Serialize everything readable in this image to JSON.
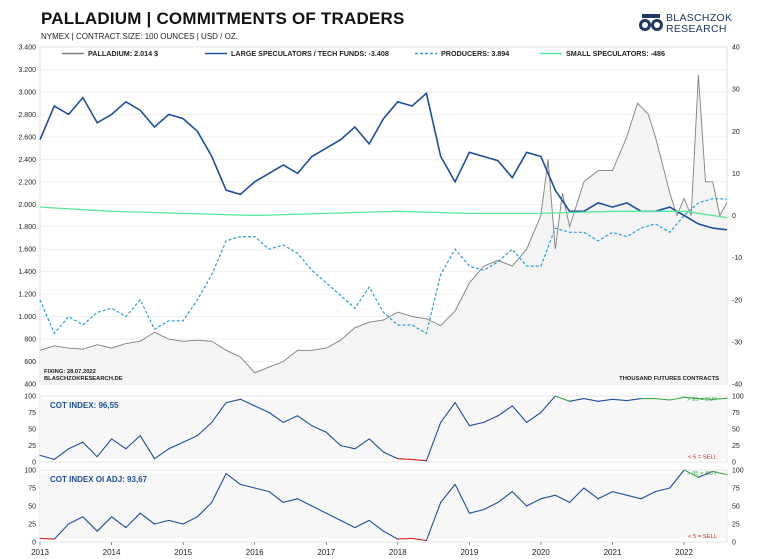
{
  "header": {
    "title": "PALLADIUM | COMMITMENTS OF TRADERS",
    "subtitle": "NYMEX | CONTRACT SIZE: 100 OUNCES | USD / OZ.",
    "logo_text_1": "BLASCHZOK",
    "logo_text_2": "RESEARCH"
  },
  "colors": {
    "price": "#7f7f7f",
    "large_spec": "#1f4e9e",
    "producers": "#2a9fd8",
    "small_spec": "#57e89a",
    "buy": "#3aa845",
    "sell": "#e02020",
    "grid": "#e6e6e6"
  },
  "chart_data": [
    {
      "type": "line",
      "panel": "main",
      "legend": [
        {
          "key": "price",
          "label": "PALLADIUM: 2.014 $"
        },
        {
          "key": "large_spec",
          "label": "LARGE SPECULATORS / TECH FUNDS: -3.408"
        },
        {
          "key": "producers",
          "label": "PRODUCERS: 3.894"
        },
        {
          "key": "small_spec",
          "label": "SMALL SPECULATORS: -486"
        }
      ],
      "left_axis": {
        "ticks": [
          "3.400",
          "3.200",
          "3.000",
          "2.800",
          "2.600",
          "2.400",
          "2.200",
          "2.000",
          "1.800",
          "1.600",
          "1.400",
          "1.200",
          "1.000",
          "800",
          "600",
          "400"
        ],
        "ylim": [
          400,
          3400
        ]
      },
      "right_axis": {
        "ticks": [
          "40",
          "30",
          "20",
          "10",
          "0",
          "-10",
          "-20",
          "-30",
          "-40"
        ],
        "ylim": [
          -40,
          40
        ]
      },
      "x_ticks": [
        "2013",
        "2014",
        "2015",
        "2016",
        "2017",
        "2018",
        "2019",
        "2020",
        "2021",
        "2022"
      ],
      "x_range": [
        2013.0,
        2022.6
      ],
      "fixing_note": "FIXING: 28.07.2022",
      "source_note": "BLASCHZOKRESEARCH.DE",
      "unit_note": "THOUSAND FUTURES CONTRACTS",
      "series": [
        {
          "key": "price",
          "axis": "left",
          "x": [
            2013.0,
            2013.2,
            2013.4,
            2013.6,
            2013.8,
            2014.0,
            2014.2,
            2014.4,
            2014.6,
            2014.8,
            2015.0,
            2015.2,
            2015.4,
            2015.6,
            2015.8,
            2016.0,
            2016.2,
            2016.4,
            2016.6,
            2016.8,
            2017.0,
            2017.2,
            2017.4,
            2017.6,
            2017.8,
            2018.0,
            2018.2,
            2018.4,
            2018.6,
            2018.8,
            2019.0,
            2019.2,
            2019.4,
            2019.6,
            2019.8,
            2020.0,
            2020.1,
            2020.2,
            2020.3,
            2020.4,
            2020.6,
            2020.8,
            2021.0,
            2021.2,
            2021.35,
            2021.5,
            2021.6,
            2021.8,
            2021.9,
            2022.0,
            2022.1,
            2022.2,
            2022.3,
            2022.4,
            2022.5,
            2022.6
          ],
          "y": [
            700,
            740,
            720,
            710,
            750,
            720,
            760,
            780,
            860,
            800,
            780,
            790,
            780,
            700,
            640,
            500,
            550,
            600,
            700,
            700,
            720,
            790,
            900,
            950,
            970,
            1040,
            1000,
            980,
            920,
            1050,
            1300,
            1450,
            1500,
            1450,
            1600,
            1900,
            2400,
            1600,
            2100,
            1800,
            2200,
            2300,
            2300,
            2600,
            2900,
            2800,
            2600,
            2100,
            1900,
            2050,
            1900,
            3150,
            2200,
            2200,
            1900,
            2014
          ]
        },
        {
          "key": "large_spec",
          "axis": "right",
          "x": [
            2013.0,
            2013.2,
            2013.4,
            2013.6,
            2013.8,
            2014.0,
            2014.2,
            2014.4,
            2014.6,
            2014.8,
            2015.0,
            2015.2,
            2015.4,
            2015.6,
            2015.8,
            2016.0,
            2016.2,
            2016.4,
            2016.6,
            2016.8,
            2017.0,
            2017.2,
            2017.4,
            2017.6,
            2017.8,
            2018.0,
            2018.2,
            2018.4,
            2018.6,
            2018.8,
            2019.0,
            2019.2,
            2019.4,
            2019.6,
            2019.8,
            2020.0,
            2020.2,
            2020.4,
            2020.6,
            2020.8,
            2021.0,
            2021.2,
            2021.4,
            2021.6,
            2021.8,
            2022.0,
            2022.2,
            2022.4,
            2022.6
          ],
          "y": [
            18,
            26,
            24,
            28,
            22,
            24,
            27,
            25,
            21,
            24,
            23,
            20,
            14,
            6,
            5,
            8,
            10,
            12,
            10,
            14,
            16,
            18,
            21,
            17,
            23,
            27,
            26,
            29,
            14,
            8,
            15,
            14,
            13,
            9,
            15,
            14,
            6,
            1,
            1,
            3,
            2,
            3,
            1,
            1,
            2,
            0,
            -2,
            -3,
            -3.4
          ]
        },
        {
          "key": "producers",
          "axis": "right",
          "x": [
            2013.0,
            2013.2,
            2013.4,
            2013.6,
            2013.8,
            2014.0,
            2014.2,
            2014.4,
            2014.6,
            2014.8,
            2015.0,
            2015.2,
            2015.4,
            2015.6,
            2015.8,
            2016.0,
            2016.2,
            2016.4,
            2016.6,
            2016.8,
            2017.0,
            2017.2,
            2017.4,
            2017.6,
            2017.8,
            2018.0,
            2018.2,
            2018.4,
            2018.6,
            2018.8,
            2019.0,
            2019.2,
            2019.4,
            2019.6,
            2019.8,
            2020.0,
            2020.2,
            2020.4,
            2020.6,
            2020.8,
            2021.0,
            2021.2,
            2021.4,
            2021.6,
            2021.8,
            2022.0,
            2022.2,
            2022.4,
            2022.6
          ],
          "y": [
            -20,
            -28,
            -24,
            -26,
            -23,
            -22,
            -24,
            -20,
            -27,
            -25,
            -25,
            -20,
            -14,
            -6,
            -5,
            -5,
            -8,
            -7,
            -9,
            -13,
            -16,
            -19,
            -22,
            -17,
            -23,
            -26,
            -26,
            -28,
            -14,
            -8,
            -12,
            -13,
            -11,
            -8,
            -12,
            -12,
            -3,
            -4,
            -4,
            -6,
            -4,
            -5,
            -3,
            -2,
            -4,
            0,
            3,
            4,
            3.9
          ]
        },
        {
          "key": "small_spec",
          "axis": "right",
          "x": [
            2013.0,
            2014.0,
            2015.0,
            2016.0,
            2017.0,
            2018.0,
            2019.0,
            2020.0,
            2021.0,
            2022.0,
            2022.6
          ],
          "y": [
            2,
            1,
            0.5,
            0,
            0.5,
            1,
            0.5,
            0.5,
            1,
            1,
            -0.5
          ]
        }
      ]
    },
    {
      "type": "line",
      "panel": "cot_index",
      "title": "COT INDEX: 96,55",
      "buy_label": "> 95 = BUY",
      "sell_label": "< 5 = SELL",
      "ticks": [
        "100",
        "75",
        "50",
        "25",
        "0"
      ],
      "ylim": [
        0,
        100
      ],
      "x": [
        2013.0,
        2013.2,
        2013.4,
        2013.6,
        2013.8,
        2014.0,
        2014.2,
        2014.4,
        2014.6,
        2014.8,
        2015.0,
        2015.2,
        2015.4,
        2015.6,
        2015.8,
        2016.0,
        2016.2,
        2016.4,
        2016.6,
        2016.8,
        2017.0,
        2017.2,
        2017.4,
        2017.6,
        2017.8,
        2018.0,
        2018.2,
        2018.4,
        2018.6,
        2018.8,
        2019.0,
        2019.2,
        2019.4,
        2019.6,
        2019.8,
        2020.0,
        2020.2,
        2020.4,
        2020.6,
        2020.8,
        2021.0,
        2021.2,
        2021.4,
        2021.6,
        2021.8,
        2022.0,
        2022.2,
        2022.4,
        2022.6
      ],
      "y": [
        10,
        4,
        20,
        30,
        8,
        35,
        20,
        40,
        5,
        20,
        30,
        40,
        60,
        90,
        95,
        85,
        75,
        60,
        70,
        55,
        45,
        25,
        20,
        35,
        15,
        5,
        4,
        2,
        60,
        90,
        55,
        60,
        70,
        85,
        60,
        75,
        100,
        92,
        96,
        92,
        95,
        93,
        96,
        96,
        94,
        98,
        96,
        95,
        96.55
      ]
    },
    {
      "type": "line",
      "panel": "cot_index_oi_adj",
      "title": "COT INDEX OI ADJ: 93,67",
      "buy_label": "> 95 = BUY",
      "sell_label": "< 5 = SELL",
      "ticks": [
        "100",
        "75",
        "50",
        "25",
        "0"
      ],
      "ylim": [
        0,
        100
      ],
      "x": [
        2013.0,
        2013.2,
        2013.4,
        2013.6,
        2013.8,
        2014.0,
        2014.2,
        2014.4,
        2014.6,
        2014.8,
        2015.0,
        2015.2,
        2015.4,
        2015.6,
        2015.8,
        2016.0,
        2016.2,
        2016.4,
        2016.6,
        2016.8,
        2017.0,
        2017.2,
        2017.4,
        2017.6,
        2017.8,
        2018.0,
        2018.2,
        2018.4,
        2018.6,
        2018.8,
        2019.0,
        2019.2,
        2019.4,
        2019.6,
        2019.8,
        2020.0,
        2020.2,
        2020.4,
        2020.6,
        2020.8,
        2021.0,
        2021.2,
        2021.4,
        2021.6,
        2021.8,
        2022.0,
        2022.2,
        2022.4,
        2022.6
      ],
      "y": [
        5,
        4,
        25,
        35,
        15,
        35,
        20,
        40,
        25,
        30,
        25,
        35,
        55,
        95,
        80,
        75,
        70,
        55,
        60,
        50,
        40,
        30,
        20,
        30,
        15,
        4,
        5,
        2,
        55,
        80,
        40,
        45,
        55,
        70,
        50,
        60,
        65,
        55,
        75,
        60,
        70,
        65,
        60,
        70,
        75,
        100,
        90,
        98,
        93.67
      ]
    }
  ]
}
